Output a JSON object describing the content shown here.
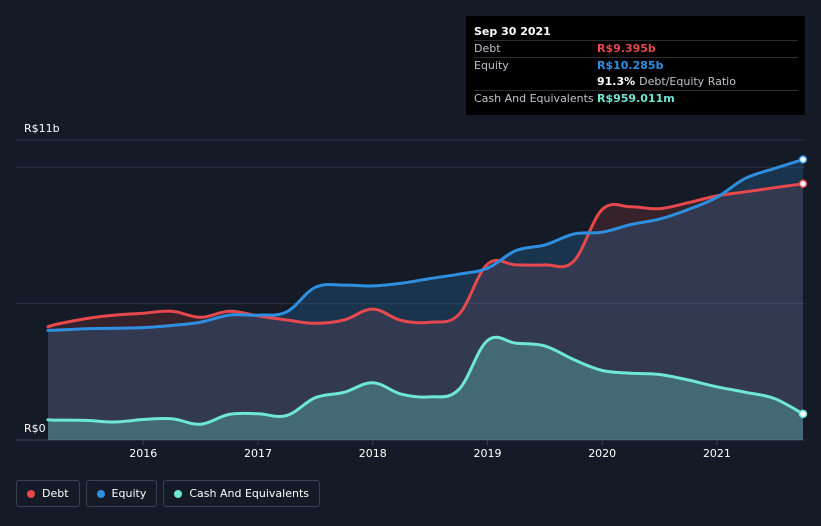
{
  "colors": {
    "background": "#151b26",
    "debt": "#e5484d",
    "equity": "#2e8fe0",
    "cash": "#6ee7d4",
    "grid": "#2b3240"
  },
  "tooltip": {
    "date": "Sep 30 2021",
    "debt_label": "Debt",
    "debt_value": "R$9.395b",
    "equity_label": "Equity",
    "equity_value": "R$10.285b",
    "ratio_value": "91.3%",
    "ratio_label": "Debt/Equity Ratio",
    "cash_label": "Cash And Equivalents",
    "cash_value": "R$959.011m"
  },
  "legend": {
    "debt": "Debt",
    "equity": "Equity",
    "cash": "Cash And Equivalents"
  },
  "chart_data": {
    "type": "area",
    "title": "",
    "xlabel": "",
    "ylabel": "",
    "y_top_label": "R$11b",
    "y_bottom_label": "R$0",
    "ylim": [
      0,
      11
    ],
    "xlim": [
      2015.17,
      2021.75
    ],
    "x_ticks": [
      {
        "value": 2016,
        "label": "2016"
      },
      {
        "value": 2017,
        "label": "2017"
      },
      {
        "value": 2018,
        "label": "2018"
      },
      {
        "value": 2019,
        "label": "2019"
      },
      {
        "value": 2020,
        "label": "2020"
      },
      {
        "value": 2021,
        "label": "2021"
      }
    ],
    "x": [
      2015.17,
      2015.25,
      2015.5,
      2015.75,
      2016.0,
      2016.25,
      2016.5,
      2016.75,
      2017.0,
      2017.25,
      2017.5,
      2017.75,
      2018.0,
      2018.25,
      2018.5,
      2018.75,
      2019.0,
      2019.25,
      2019.5,
      2019.75,
      2020.0,
      2020.25,
      2020.5,
      2020.75,
      2021.0,
      2021.25,
      2021.5,
      2021.75
    ],
    "series": [
      {
        "name": "Debt",
        "values": [
          4.15,
          4.25,
          4.45,
          4.58,
          4.65,
          4.72,
          4.5,
          4.72,
          4.55,
          4.4,
          4.28,
          4.4,
          4.8,
          4.38,
          4.32,
          4.6,
          6.45,
          6.42,
          6.42,
          6.55,
          8.45,
          8.55,
          8.48,
          8.7,
          8.95,
          9.1,
          9.25,
          9.395
        ]
      },
      {
        "name": "Equity",
        "values": [
          4.02,
          4.03,
          4.08,
          4.1,
          4.12,
          4.2,
          4.32,
          4.58,
          4.58,
          4.7,
          5.6,
          5.68,
          5.65,
          5.75,
          5.92,
          6.08,
          6.3,
          6.95,
          7.15,
          7.55,
          7.62,
          7.9,
          8.1,
          8.45,
          8.9,
          9.6,
          9.95,
          10.285
        ]
      },
      {
        "name": "Cash And Equivalents",
        "values": [
          0.74,
          0.73,
          0.72,
          0.66,
          0.75,
          0.78,
          0.58,
          0.94,
          0.96,
          0.9,
          1.55,
          1.75,
          2.1,
          1.68,
          1.58,
          1.85,
          3.65,
          3.55,
          3.45,
          2.95,
          2.55,
          2.45,
          2.4,
          2.2,
          1.95,
          1.75,
          1.52,
          0.959
        ]
      }
    ]
  }
}
